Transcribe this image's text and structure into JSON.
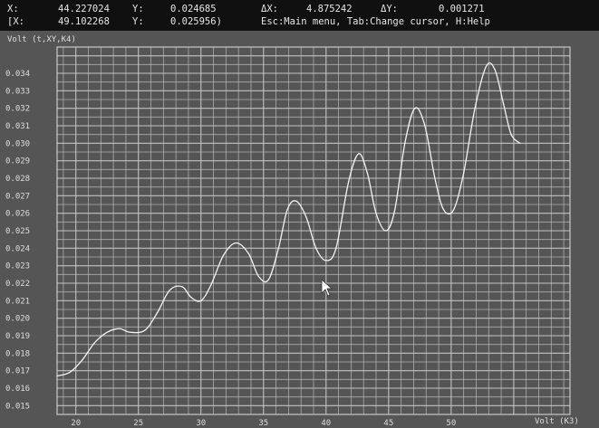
{
  "status": {
    "row1": {
      "x_label": "X:",
      "x_value": "44.227024",
      "y_label": "Y:",
      "y_value": "0.024685",
      "dx_label": "ΔX:",
      "dx_value": "4.875242",
      "dy_label": "ΔY:",
      "dy_value": "0.001271"
    },
    "row2": {
      "x_label": "[X:",
      "x_value": "49.102268",
      "y_label": "Y:",
      "y_value": "0.025956)",
      "help": "Esc:Main menu, Tab:Change cursor, H:Help"
    }
  },
  "chart_data": {
    "type": "line",
    "title": "Volt (t,XY,K4)",
    "xlabel": "Volt (K3)",
    "ylabel": "",
    "xlim": [
      18.5,
      59.5
    ],
    "ylim": [
      0.0145,
      0.0355
    ],
    "grid": true,
    "x_ticks": [
      "20",
      "25",
      "30",
      "35",
      "40",
      "45",
      "50"
    ],
    "y_ticks": [
      "0.034",
      "0.033",
      "0.032",
      "0.031",
      "0.030",
      "0.029",
      "0.028",
      "0.027",
      "0.026",
      "0.025",
      "0.024",
      "0.023",
      "0.022",
      "0.021",
      "0.020",
      "0.019",
      "0.018",
      "0.017",
      "0.016",
      "0.015"
    ],
    "series": [
      {
        "x": [
          18.5,
          19.5,
          20.5,
          21.5,
          22.5,
          23.5,
          24.3,
          25.5,
          26.5,
          27.5,
          28.5,
          29.2,
          30.0,
          30.8,
          31.8,
          32.8,
          33.8,
          34.6,
          35.4,
          36.2,
          36.9,
          37.6,
          38.4,
          39.2,
          40.0,
          40.8,
          41.8,
          42.6,
          43.3,
          44.0,
          44.8,
          45.5,
          46.3,
          47.1,
          47.9,
          48.7,
          49.4,
          50.2,
          51.0,
          51.9,
          52.8,
          53.5,
          54.2,
          54.8,
          55.5
        ],
        "y": [
          0.0167,
          0.0169,
          0.0176,
          0.0186,
          0.0192,
          0.0194,
          0.0192,
          0.0193,
          0.0203,
          0.0216,
          0.0218,
          0.0212,
          0.021,
          0.0219,
          0.0236,
          0.0243,
          0.0237,
          0.0224,
          0.0222,
          0.024,
          0.0262,
          0.0267,
          0.0258,
          0.024,
          0.0233,
          0.024,
          0.0278,
          0.0294,
          0.0283,
          0.026,
          0.025,
          0.0262,
          0.03,
          0.032,
          0.031,
          0.028,
          0.0262,
          0.0262,
          0.0283,
          0.032,
          0.0344,
          0.0342,
          0.0322,
          0.0305,
          0.03
        ]
      }
    ]
  },
  "colors": {
    "background": "#555555",
    "grid": "#c8c8c8",
    "trace": "#f4f4f4",
    "text": "#dedede"
  },
  "cursor_icon": "mouse-pointer-icon"
}
